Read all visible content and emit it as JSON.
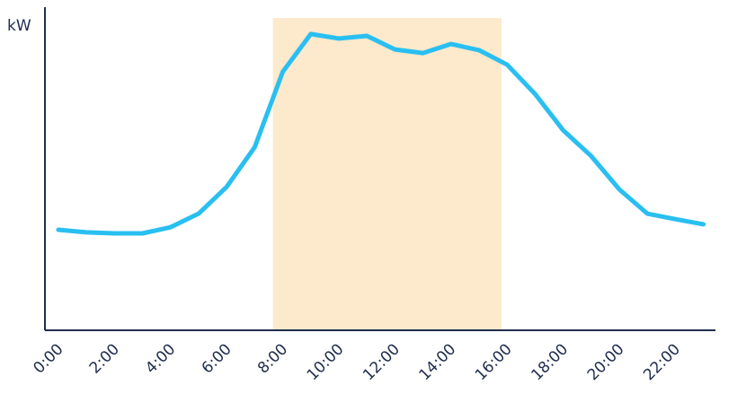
{
  "chart_data": {
    "type": "line",
    "y_label": "kW",
    "categories": [
      "0:00",
      null,
      "2:00",
      null,
      "4:00",
      null,
      "6:00",
      null,
      "8:00",
      null,
      "10:00",
      null,
      "12:00",
      null,
      "14:00",
      null,
      "16:00",
      null,
      "18:00",
      null,
      "20:00",
      null,
      "22:00",
      null
    ],
    "values": [
      31.1,
      30.3,
      30,
      30,
      31.9,
      36.1,
      44.4,
      56.7,
      80,
      91.7,
      90.3,
      91.1,
      86.9,
      85.8,
      88.6,
      86.7,
      82.2,
      73.1,
      61.9,
      53.9,
      43.6,
      36.1,
      34.4,
      32.8
    ],
    "color": "#29bff1",
    "highlight_range": [
      7.65,
      15.8
    ],
    "highlight_color": "#fde9cc",
    "ylim": [
      0,
      100
    ]
  }
}
